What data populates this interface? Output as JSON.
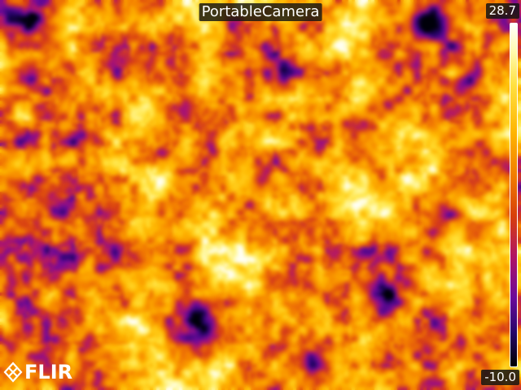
{
  "camera": {
    "title": "PortableCamera"
  },
  "scale": {
    "max_label": "28.7",
    "min_label": "-10.0",
    "palette": "iron",
    "colors": [
      "#ffffff",
      "#fffbb0",
      "#ffe040",
      "#ffb400",
      "#f07a00",
      "#d8400a",
      "#b01464",
      "#6a0a9a",
      "#28066a",
      "#000000"
    ]
  },
  "logo": {
    "text": "FLIR",
    "icon": "flir-diamond-logo"
  }
}
